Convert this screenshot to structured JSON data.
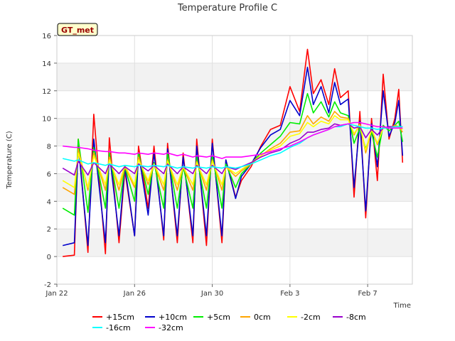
{
  "chart_data": {
    "type": "line",
    "title": "Temperature Profile C",
    "xlabel": "Time",
    "ylabel": "Temperature (C)",
    "site_badge": "GT_met",
    "ylim": [
      -2,
      16
    ],
    "yticks": [
      -2,
      0,
      2,
      4,
      6,
      8,
      10,
      12,
      14,
      16
    ],
    "xlim_days": [
      0,
      18.3
    ],
    "xticks": [
      {
        "label": "Jan 22",
        "day": 0
      },
      {
        "label": "Jan 26",
        "day": 4
      },
      {
        "label": "Jan 30",
        "day": 8
      },
      {
        "label": "Feb 3",
        "day": 12
      },
      {
        "label": "Feb 7",
        "day": 16
      }
    ],
    "grid": true,
    "legend_position": "bottom",
    "x_days": [
      0.3,
      0.9,
      1.1,
      1.6,
      1.9,
      2.5,
      2.7,
      3.2,
      3.5,
      4.0,
      4.2,
      4.7,
      5.0,
      5.5,
      5.7,
      6.2,
      6.5,
      7.0,
      7.2,
      7.7,
      8.0,
      8.5,
      8.7,
      9.2,
      9.5,
      10.0,
      10.5,
      11.0,
      11.5,
      12.0,
      12.5,
      12.9,
      13.2,
      13.6,
      14.0,
      14.3,
      14.6,
      15.0,
      15.3,
      15.6,
      15.9,
      16.2,
      16.5,
      16.8,
      17.1,
      17.4,
      17.6,
      17.8
    ],
    "series": [
      {
        "name": "+15cm",
        "color": "#ff0000",
        "values": [
          0.0,
          0.1,
          8.5,
          0.3,
          10.3,
          0.2,
          8.6,
          1.0,
          6.2,
          1.5,
          8.0,
          3.5,
          8.0,
          1.2,
          8.2,
          1.0,
          7.5,
          1.0,
          8.5,
          0.8,
          8.5,
          1.0,
          7.0,
          4.3,
          5.5,
          6.5,
          8.0,
          9.2,
          9.5,
          12.3,
          10.5,
          15.0,
          11.8,
          12.8,
          11.0,
          13.6,
          11.5,
          12.0,
          4.3,
          10.5,
          2.8,
          10.0,
          5.5,
          13.2,
          8.5,
          10.0,
          12.1,
          6.8
        ]
      },
      {
        "name": "+10cm",
        "color": "#0000cc",
        "values": [
          0.8,
          1.0,
          8.0,
          0.8,
          8.5,
          1.0,
          7.5,
          1.5,
          6.5,
          1.5,
          7.5,
          3.0,
          7.5,
          1.5,
          7.8,
          1.5,
          7.2,
          1.5,
          8.0,
          1.5,
          8.2,
          1.5,
          7.0,
          4.2,
          5.8,
          6.7,
          7.9,
          8.8,
          9.2,
          11.3,
          10.2,
          13.7,
          11.0,
          12.3,
          10.4,
          12.6,
          11.0,
          11.4,
          5.0,
          9.8,
          3.3,
          9.6,
          6.5,
          12.0,
          8.7,
          9.7,
          11.3,
          7.3
        ]
      },
      {
        "name": "+5cm",
        "color": "#00ee00",
        "values": [
          3.5,
          3.0,
          8.5,
          3.2,
          7.9,
          3.5,
          7.5,
          3.5,
          6.5,
          4.0,
          7.5,
          4.5,
          6.8,
          3.5,
          7.5,
          3.5,
          6.5,
          3.5,
          7.2,
          3.5,
          7.3,
          3.5,
          6.7,
          5.0,
          6.0,
          6.7,
          7.5,
          8.1,
          8.7,
          9.7,
          9.6,
          11.8,
          10.4,
          11.2,
          10.1,
          11.2,
          10.4,
          10.2,
          8.2,
          9.3,
          7.8,
          9.0,
          7.2,
          9.5,
          9.1,
          9.5,
          9.8,
          8.3
        ]
      },
      {
        "name": "0cm",
        "color": "#ffa500",
        "values": [
          5.0,
          4.5,
          7.8,
          4.8,
          7.5,
          4.8,
          7.2,
          4.8,
          6.5,
          5.0,
          7.2,
          5.2,
          6.7,
          4.8,
          7.0,
          4.8,
          6.5,
          4.8,
          6.9,
          4.8,
          7.0,
          4.8,
          6.5,
          5.8,
          6.2,
          6.7,
          7.3,
          7.8,
          8.2,
          9.0,
          9.1,
          10.2,
          9.6,
          10.1,
          9.8,
          10.5,
          10.1,
          10.0,
          8.8,
          9.6,
          7.5,
          9.2,
          8.1,
          9.4,
          9.3,
          9.5,
          9.4,
          9.0
        ]
      },
      {
        "name": "-2cm",
        "color": "#ffff00",
        "values": [
          5.5,
          5.0,
          7.5,
          5.0,
          7.3,
          5.2,
          7.0,
          5.2,
          6.6,
          5.2,
          7.0,
          5.5,
          6.7,
          5.2,
          6.9,
          5.2,
          6.5,
          5.2,
          6.8,
          5.2,
          6.9,
          5.2,
          6.5,
          6.0,
          6.3,
          6.8,
          7.3,
          7.7,
          8.0,
          8.7,
          8.9,
          9.7,
          9.4,
          9.8,
          9.6,
          10.2,
          9.9,
          9.9,
          8.9,
          9.5,
          7.7,
          9.2,
          8.2,
          9.3,
          9.3,
          9.4,
          9.4,
          9.2
        ]
      },
      {
        "name": "-8cm",
        "color": "#9900cc",
        "values": [
          6.4,
          5.9,
          6.9,
          5.9,
          6.8,
          6.0,
          6.7,
          6.0,
          6.5,
          6.0,
          6.7,
          6.2,
          6.6,
          6.0,
          6.7,
          6.0,
          6.5,
          6.0,
          6.6,
          6.0,
          6.6,
          6.0,
          6.5,
          6.3,
          6.5,
          6.8,
          7.2,
          7.5,
          7.7,
          8.2,
          8.5,
          9.0,
          9.0,
          9.2,
          9.3,
          9.6,
          9.5,
          9.6,
          9.3,
          9.4,
          8.6,
          9.2,
          8.8,
          9.3,
          9.4,
          9.4,
          9.4,
          9.4
        ]
      },
      {
        "name": "-16cm",
        "color": "#00ffff",
        "values": [
          7.1,
          6.9,
          7.0,
          6.7,
          6.8,
          6.6,
          6.7,
          6.5,
          6.6,
          6.5,
          6.6,
          6.5,
          6.6,
          6.5,
          6.6,
          6.4,
          6.5,
          6.4,
          6.5,
          6.4,
          6.5,
          6.4,
          6.5,
          6.4,
          6.5,
          6.7,
          7.0,
          7.3,
          7.5,
          7.9,
          8.2,
          8.6,
          8.8,
          9.0,
          9.2,
          9.4,
          9.4,
          9.6,
          9.5,
          9.4,
          9.3,
          9.3,
          9.2,
          9.3,
          9.3,
          9.4,
          9.4,
          9.4
        ]
      },
      {
        "name": "-32cm",
        "color": "#ff00ff",
        "values": [
          8.0,
          7.9,
          7.9,
          7.8,
          7.7,
          7.6,
          7.6,
          7.5,
          7.5,
          7.4,
          7.5,
          7.4,
          7.5,
          7.4,
          7.5,
          7.3,
          7.4,
          7.2,
          7.3,
          7.2,
          7.3,
          7.1,
          7.2,
          7.2,
          7.2,
          7.3,
          7.4,
          7.6,
          7.8,
          8.0,
          8.3,
          8.6,
          8.8,
          9.0,
          9.2,
          9.4,
          9.5,
          9.6,
          9.7,
          9.7,
          9.6,
          9.5,
          9.4,
          9.4,
          9.3,
          9.3,
          9.3,
          9.3
        ]
      }
    ]
  }
}
